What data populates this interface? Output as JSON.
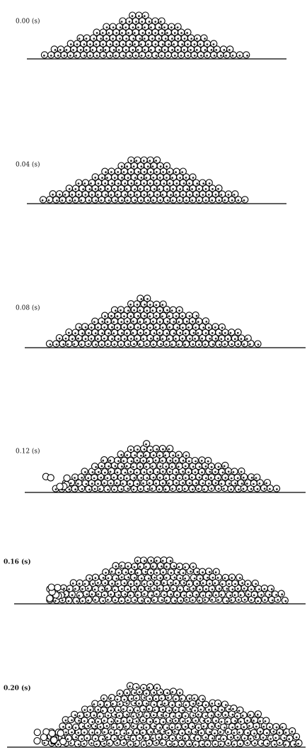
{
  "panels": [
    {
      "label": "0.00 (s)"
    },
    {
      "label": "0.04 (s)"
    },
    {
      "label": "0.08 (s)"
    },
    {
      "label": "0.12 (s)"
    },
    {
      "label": "0.16 (s)"
    },
    {
      "label": "0.20 (s)"
    }
  ]
}
